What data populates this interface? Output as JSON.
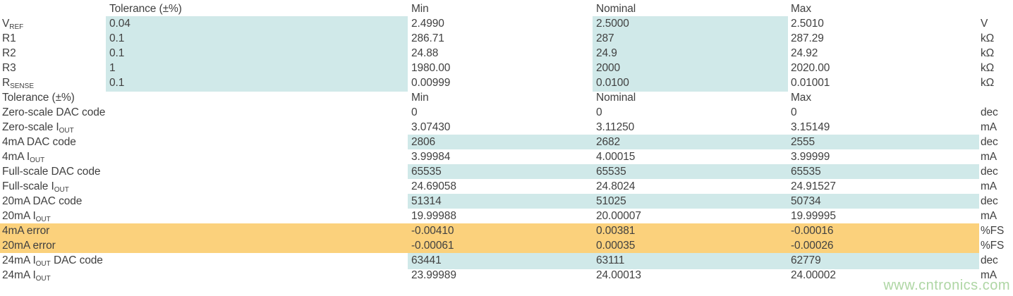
{
  "colors": {
    "highlight_cyan": "#d0e9e9",
    "highlight_orange": "#fbd17c",
    "text": "#404040",
    "watermark_green": "#aed6a4"
  },
  "watermark": {
    "text": "www.cntronics.com"
  },
  "table": {
    "column_headers": {
      "tolerance": "Tolerance (±%)",
      "min": "Min",
      "nominal": "Nominal",
      "max": "Max"
    },
    "rows": [
      {
        "type": "header",
        "highlight": "none",
        "label": "",
        "tol": "Tolerance (±%)",
        "min": "Min",
        "nominal": "Nominal",
        "max": "Max",
        "unit": ""
      },
      {
        "type": "param",
        "highlight": "ref",
        "label_parts": [
          {
            "t": "V"
          },
          {
            "s": "REF"
          }
        ],
        "tol": "0.04",
        "min": "2.4990",
        "nominal": "2.5000",
        "max": "2.5010",
        "unit": "V"
      },
      {
        "type": "param",
        "highlight": "ref",
        "label_parts": [
          {
            "t": "R1"
          }
        ],
        "tol": "0.1",
        "min": "286.71",
        "nominal": "287",
        "max": "287.29",
        "unit": "kΩ"
      },
      {
        "type": "param",
        "highlight": "ref",
        "label_parts": [
          {
            "t": "R2"
          }
        ],
        "tol": "0.1",
        "min": "24.88",
        "nominal": "24.9",
        "max": "24.92",
        "unit": "kΩ"
      },
      {
        "type": "param",
        "highlight": "ref",
        "label_parts": [
          {
            "t": "R3"
          }
        ],
        "tol": "1",
        "min": "1980.00",
        "nominal": "2000",
        "max": "2020.00",
        "unit": "kΩ"
      },
      {
        "type": "param",
        "highlight": "ref",
        "label_parts": [
          {
            "t": "R"
          },
          {
            "s": "SENSE"
          }
        ],
        "tol": "0.1",
        "min": "0.00999",
        "nominal": "0.0100",
        "max": "0.01001",
        "unit": "kΩ"
      },
      {
        "type": "header",
        "highlight": "none",
        "label": "Tolerance (±%)",
        "tol": "",
        "min": "Min",
        "nominal": "Nominal",
        "max": "Max",
        "unit": ""
      },
      {
        "type": "result",
        "highlight": "none",
        "label_parts": [
          {
            "t": "Zero-scale DAC code"
          }
        ],
        "tol": "",
        "min": "0",
        "nominal": "0",
        "max": "0",
        "unit": "dec"
      },
      {
        "type": "result",
        "highlight": "none",
        "label_parts": [
          {
            "t": "Zero-scale I"
          },
          {
            "s": "OUT"
          }
        ],
        "tol": "",
        "min": "3.07430",
        "nominal": "3.11250",
        "max": "3.15149",
        "unit": "mA"
      },
      {
        "type": "result",
        "highlight": "dac",
        "label_parts": [
          {
            "t": "4mA DAC code"
          }
        ],
        "tol": "",
        "min": "2806",
        "nominal": "2682",
        "max": "2555",
        "unit": "dec"
      },
      {
        "type": "result",
        "highlight": "none",
        "label_parts": [
          {
            "t": "4mA I"
          },
          {
            "s": "OUT"
          }
        ],
        "tol": "",
        "min": "3.99984",
        "nominal": "4.00015",
        "max": "3.99999",
        "unit": "mA"
      },
      {
        "type": "result",
        "highlight": "dac",
        "label_parts": [
          {
            "t": "Full-scale DAC code"
          }
        ],
        "tol": "",
        "min": "65535",
        "nominal": "65535",
        "max": "65535",
        "unit": "dec"
      },
      {
        "type": "result",
        "highlight": "none",
        "label_parts": [
          {
            "t": "Full-scale I"
          },
          {
            "s": "OUT"
          }
        ],
        "tol": "",
        "min": "24.69058",
        "nominal": "24.8024",
        "max": "24.91527",
        "unit": "mA"
      },
      {
        "type": "result",
        "highlight": "dac",
        "label_parts": [
          {
            "t": "20mA DAC code"
          }
        ],
        "tol": "",
        "min": "51314",
        "nominal": "51025",
        "max": "50734",
        "unit": "dec"
      },
      {
        "type": "result",
        "highlight": "none",
        "label_parts": [
          {
            "t": "20mA I"
          },
          {
            "s": "OUT"
          }
        ],
        "tol": "",
        "min": "19.99988",
        "nominal": "20.00007",
        "max": "19.99995",
        "unit": "mA"
      },
      {
        "type": "result",
        "highlight": "err",
        "label_parts": [
          {
            "t": "4mA error"
          }
        ],
        "tol": "",
        "min": "-0.00410",
        "nominal": "0.00381",
        "max": "-0.00016",
        "unit": "%FS"
      },
      {
        "type": "result",
        "highlight": "err",
        "label_parts": [
          {
            "t": "20mA error"
          }
        ],
        "tol": "",
        "min": "-0.00061",
        "nominal": "0.00035",
        "max": "-0.00026",
        "unit": "%FS"
      },
      {
        "type": "result",
        "highlight": "dac",
        "label_parts": [
          {
            "t": "24mA I"
          },
          {
            "s": "OUT"
          },
          {
            "t": " DAC code"
          }
        ],
        "tol": "",
        "min": "63441",
        "nominal": "63111",
        "max": "62779",
        "unit": "dec"
      },
      {
        "type": "result",
        "highlight": "none",
        "label_parts": [
          {
            "t": "24mA I"
          },
          {
            "s": "OUT"
          }
        ],
        "tol": "",
        "min": "23.99989",
        "nominal": "24.00013",
        "max": "24.00002",
        "unit": "mA"
      }
    ]
  }
}
